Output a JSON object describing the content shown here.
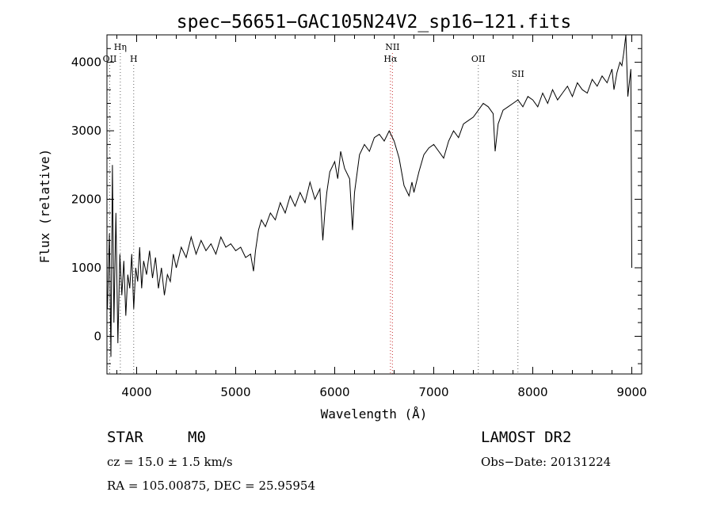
{
  "chart_data": {
    "type": "line",
    "title": "spec−56651−GAC105N24V2_sp16−121.fits",
    "xlabel": "Wavelength (Å)",
    "ylabel": "Flux (relative)",
    "xlim": [
      3700,
      9100
    ],
    "ylim": [
      -550,
      4400
    ],
    "x_ticks": [
      4000,
      5000,
      6000,
      7000,
      8000,
      9000
    ],
    "x_tick_labels": [
      "4000",
      "5000",
      "6000",
      "7000",
      "8000",
      "9000"
    ],
    "y_ticks": [
      0,
      1000,
      2000,
      3000,
      4000
    ],
    "y_tick_labels": [
      "0",
      "1000",
      "2000",
      "3000",
      "4000"
    ],
    "grid": false,
    "series": [
      {
        "x": [
          3705,
          3725,
          3740,
          3755,
          3770,
          3790,
          3810,
          3830,
          3850,
          3870,
          3890,
          3910,
          3930,
          3950,
          3970,
          3990,
          4010,
          4030,
          4050,
          4070,
          4100,
          4130,
          4160,
          4190,
          4220,
          4250,
          4280,
          4310,
          4340,
          4370,
          4400,
          4450,
          4500,
          4550,
          4600,
          4650,
          4700,
          4750,
          4800,
          4850,
          4900,
          4950,
          5000,
          5050,
          5100,
          5150,
          5180,
          5200,
          5230,
          5260,
          5300,
          5350,
          5400,
          5450,
          5500,
          5550,
          5600,
          5650,
          5700,
          5750,
          5800,
          5850,
          5880,
          5900,
          5920,
          5950,
          6000,
          6030,
          6060,
          6100,
          6150,
          6180,
          6200,
          6250,
          6300,
          6350,
          6400,
          6450,
          6500,
          6550,
          6600,
          6650,
          6700,
          6750,
          6780,
          6800,
          6850,
          6900,
          6950,
          7000,
          7050,
          7100,
          7150,
          7200,
          7250,
          7300,
          7350,
          7400,
          7450,
          7500,
          7550,
          7600,
          7620,
          7650,
          7700,
          7750,
          7800,
          7850,
          7900,
          7950,
          8000,
          8050,
          8100,
          8150,
          8200,
          8250,
          8300,
          8350,
          8400,
          8450,
          8500,
          8550,
          8600,
          8650,
          8700,
          8750,
          8800,
          8820,
          8850,
          8880,
          8900,
          8920,
          8940,
          8960,
          8975,
          8990,
          9000
        ],
        "y": [
          400,
          1500,
          -300,
          2500,
          200,
          1800,
          -100,
          1200,
          600,
          1100,
          300,
          900,
          700,
          1200,
          400,
          1000,
          800,
          1300,
          700,
          1100,
          900,
          1250,
          850,
          1150,
          700,
          1000,
          600,
          900,
          800,
          1200,
          1000,
          1300,
          1150,
          1450,
          1200,
          1400,
          1250,
          1350,
          1200,
          1450,
          1300,
          1350,
          1250,
          1300,
          1150,
          1200,
          950,
          1250,
          1550,
          1700,
          1600,
          1800,
          1700,
          1950,
          1800,
          2050,
          1900,
          2100,
          1950,
          2250,
          2000,
          2150,
          1400,
          1800,
          2100,
          2400,
          2550,
          2300,
          2700,
          2450,
          2300,
          1550,
          2100,
          2650,
          2800,
          2700,
          2900,
          2950,
          2850,
          3000,
          2850,
          2600,
          2200,
          2050,
          2250,
          2100,
          2400,
          2650,
          2750,
          2800,
          2700,
          2600,
          2850,
          3000,
          2900,
          3100,
          3150,
          3200,
          3300,
          3400,
          3350,
          3250,
          2700,
          3100,
          3300,
          3350,
          3400,
          3450,
          3350,
          3500,
          3450,
          3350,
          3550,
          3400,
          3600,
          3450,
          3550,
          3650,
          3500,
          3700,
          3600,
          3550,
          3750,
          3650,
          3800,
          3700,
          3900,
          3600,
          3850,
          4000,
          3950,
          4150,
          4400,
          3500,
          3700,
          3900,
          1000
        ]
      }
    ],
    "line_markers": [
      {
        "label": "OII",
        "x": 3728,
        "tier": 2
      },
      {
        "label": "Hη",
        "x": 3835,
        "tier": 1
      },
      {
        "label": "H",
        "x": 3970,
        "tier": 2
      },
      {
        "label": "NII",
        "x": 6583,
        "tier": 1
      },
      {
        "label": "Hα",
        "x": 6563,
        "tier": 2
      },
      {
        "label": "OII",
        "x": 7450,
        "tier": 2
      },
      {
        "label": "SII",
        "x": 7850,
        "tier": 3
      }
    ],
    "marker_colors": {
      "default": "#666666",
      "h_alpha": "#cc3333"
    }
  },
  "info": {
    "object_class": "STAR",
    "subclass": "M0",
    "survey": "LAMOST DR2",
    "cz": "cz = 15.0 ± 1.5 km/s",
    "obs_date": "Obs−Date: 20131224",
    "coords": "RA = 105.00875, DEC =  25.95954"
  }
}
